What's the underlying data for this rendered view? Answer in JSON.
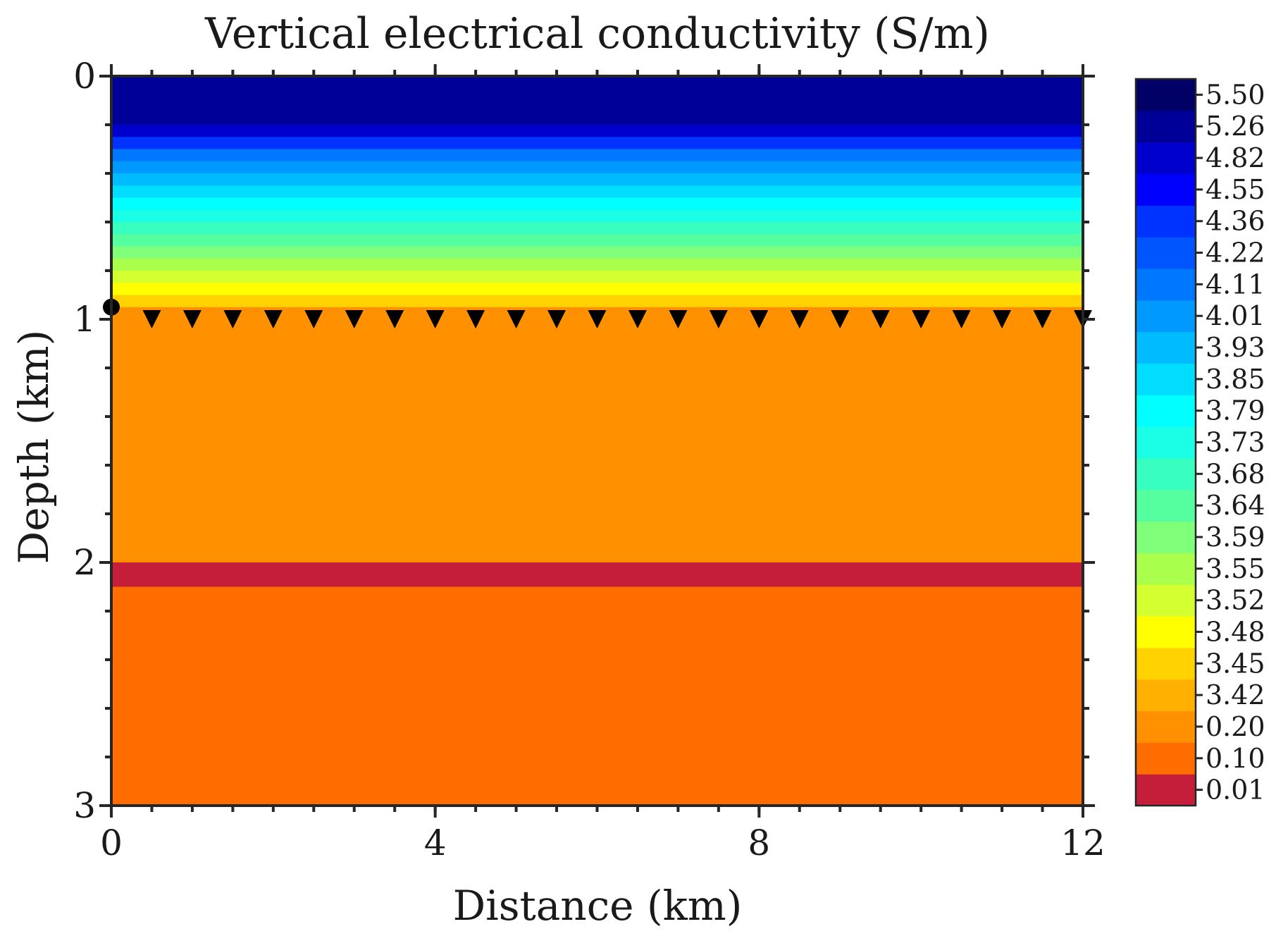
{
  "chart_data": {
    "type": "heatmap",
    "title": "Vertical electrical conductivity (S/m)",
    "xlabel": "Distance (km)",
    "ylabel": "Depth (km)",
    "xlim": [
      0,
      12
    ],
    "ylim": [
      3,
      0
    ],
    "x_ticks": [
      {
        "value": 0,
        "label": "0"
      },
      {
        "value": 4,
        "label": "4"
      },
      {
        "value": 8,
        "label": "8"
      },
      {
        "value": 12,
        "label": "12"
      }
    ],
    "y_ticks": [
      {
        "value": 0,
        "label": "0"
      },
      {
        "value": 1,
        "label": "1"
      },
      {
        "value": 2,
        "label": "2"
      },
      {
        "value": 3,
        "label": "3"
      }
    ],
    "x_minor_step": 0.5,
    "y_minor_step": 0.2,
    "colorbar": {
      "labels": [
        "0.01",
        "0.10",
        "0.20",
        "3.42",
        "3.45",
        "3.48",
        "3.52",
        "3.55",
        "3.59",
        "3.64",
        "3.68",
        "3.73",
        "3.79",
        "3.85",
        "3.93",
        "4.01",
        "4.11",
        "4.22",
        "4.36",
        "4.55",
        "4.82",
        "5.26",
        "5.50"
      ],
      "colors": [
        "#c41e3a",
        "#ff6d00",
        "#ff9100",
        "#ffb000",
        "#ffd200",
        "#ffff00",
        "#d4ff30",
        "#aaff4d",
        "#80ff7a",
        "#55ff9f",
        "#38ffc0",
        "#1affe6",
        "#00ffff",
        "#00ddff",
        "#00bbff",
        "#0099ff",
        "#0077ff",
        "#0055ff",
        "#0033ff",
        "#0000ff",
        "#0000cc",
        "#000099",
        "#000066"
      ]
    },
    "layers": [
      {
        "top": 0.0,
        "bottom": 0.95,
        "description": "graded high conductivity (surface to ~0.95 km)"
      },
      {
        "top": 0.95,
        "bottom": 2.0,
        "value": 0.2
      },
      {
        "top": 2.0,
        "bottom": 2.1,
        "value": 0.01
      },
      {
        "top": 2.1,
        "bottom": 3.0,
        "value": 0.1
      }
    ],
    "surface_gradient": [
      {
        "top": 0.0,
        "bottom": 0.2,
        "value": 5.26
      },
      {
        "top": 0.2,
        "bottom": 0.25,
        "value": 4.82
      },
      {
        "top": 0.25,
        "bottom": 0.3,
        "value": 4.36
      },
      {
        "top": 0.3,
        "bottom": 0.35,
        "value": 4.11
      },
      {
        "top": 0.35,
        "bottom": 0.4,
        "value": 4.01
      },
      {
        "top": 0.4,
        "bottom": 0.45,
        "value": 3.93
      },
      {
        "top": 0.45,
        "bottom": 0.5,
        "value": 3.85
      },
      {
        "top": 0.5,
        "bottom": 0.55,
        "value": 3.79
      },
      {
        "top": 0.55,
        "bottom": 0.6,
        "value": 3.73
      },
      {
        "top": 0.6,
        "bottom": 0.65,
        "value": 3.68
      },
      {
        "top": 0.65,
        "bottom": 0.7,
        "value": 3.64
      },
      {
        "top": 0.7,
        "bottom": 0.75,
        "value": 3.59
      },
      {
        "top": 0.75,
        "bottom": 0.8,
        "value": 3.55
      },
      {
        "top": 0.8,
        "bottom": 0.85,
        "value": 3.52
      },
      {
        "top": 0.85,
        "bottom": 0.9,
        "value": 3.48
      },
      {
        "top": 0.9,
        "bottom": 0.95,
        "value": 3.45
      }
    ],
    "source": {
      "x": 0,
      "depth": 0.95,
      "marker": "circle"
    },
    "receivers": {
      "depth": 1.0,
      "x_start": 0.5,
      "x_end": 12,
      "step": 0.5,
      "marker": "triangle-down"
    }
  }
}
